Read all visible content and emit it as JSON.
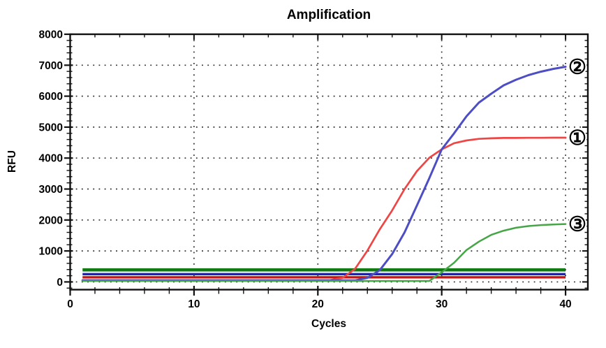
{
  "chart_data": {
    "type": "line",
    "title": "Amplification",
    "xlabel": "Cycles",
    "ylabel": "RFU",
    "xlim": [
      0,
      41.8
    ],
    "ylim": [
      -250,
      8000
    ],
    "x_ticks": [
      0,
      10,
      20,
      30,
      40
    ],
    "y_ticks": [
      0,
      1000,
      2000,
      3000,
      4000,
      5000,
      6000,
      7000,
      8000
    ],
    "x_minor_step": 2,
    "y_minor_step": 200,
    "grid": "dotted",
    "grid_color": "#2b2b2b",
    "legend_position": "curve-end-markers",
    "x": [
      1,
      2,
      3,
      4,
      5,
      6,
      7,
      8,
      9,
      10,
      11,
      12,
      13,
      14,
      15,
      16,
      17,
      18,
      19,
      20,
      21,
      22,
      23,
      24,
      25,
      26,
      27,
      28,
      29,
      30,
      31,
      32,
      33,
      34,
      35,
      36,
      37,
      38,
      39,
      40
    ],
    "series": [
      {
        "name": "curve-1-red",
        "marker": "①",
        "color": "#ee4545",
        "stroke_width": 2.7,
        "values": [
          55,
          55,
          55,
          55,
          55,
          55,
          55,
          55,
          55,
          55,
          55,
          55,
          55,
          55,
          55,
          55,
          55,
          55,
          55,
          55,
          60,
          130,
          420,
          1010,
          1700,
          2310,
          3000,
          3580,
          4010,
          4280,
          4480,
          4570,
          4620,
          4640,
          4650,
          4650,
          4655,
          4655,
          4660,
          4660
        ]
      },
      {
        "name": "curve-2-blue",
        "marker": "②",
        "color": "#4d4dc4",
        "stroke_width": 3,
        "values": [
          48,
          48,
          48,
          48,
          48,
          48,
          48,
          48,
          48,
          48,
          48,
          48,
          48,
          48,
          48,
          48,
          48,
          48,
          48,
          48,
          48,
          48,
          48,
          130,
          380,
          900,
          1600,
          2470,
          3350,
          4280,
          4800,
          5350,
          5790,
          6080,
          6350,
          6530,
          6680,
          6790,
          6880,
          6950
        ]
      },
      {
        "name": "curve-3-green",
        "marker": "③",
        "color": "#46a546",
        "stroke_width": 2.5,
        "values": [
          30,
          30,
          30,
          30,
          30,
          30,
          30,
          30,
          30,
          30,
          30,
          30,
          30,
          30,
          30,
          30,
          30,
          30,
          30,
          30,
          30,
          30,
          30,
          30,
          30,
          30,
          30,
          30,
          30,
          310,
          620,
          1030,
          1300,
          1520,
          1655,
          1750,
          1805,
          1835,
          1855,
          1870
        ]
      }
    ],
    "threshold_lines": [
      {
        "name": "threshold-red",
        "value": 150,
        "color": "#cc1212",
        "stroke_width": 3.4,
        "x_start": 1,
        "x_end": 40
      },
      {
        "name": "threshold-blue",
        "value": 250,
        "color": "#2020c0",
        "stroke_width": 3.4,
        "x_start": 1,
        "x_end": 40
      },
      {
        "name": "threshold-green",
        "value": 390,
        "color": "#127a12",
        "stroke_width": 4.6,
        "x_start": 1,
        "x_end": 40
      }
    ]
  }
}
